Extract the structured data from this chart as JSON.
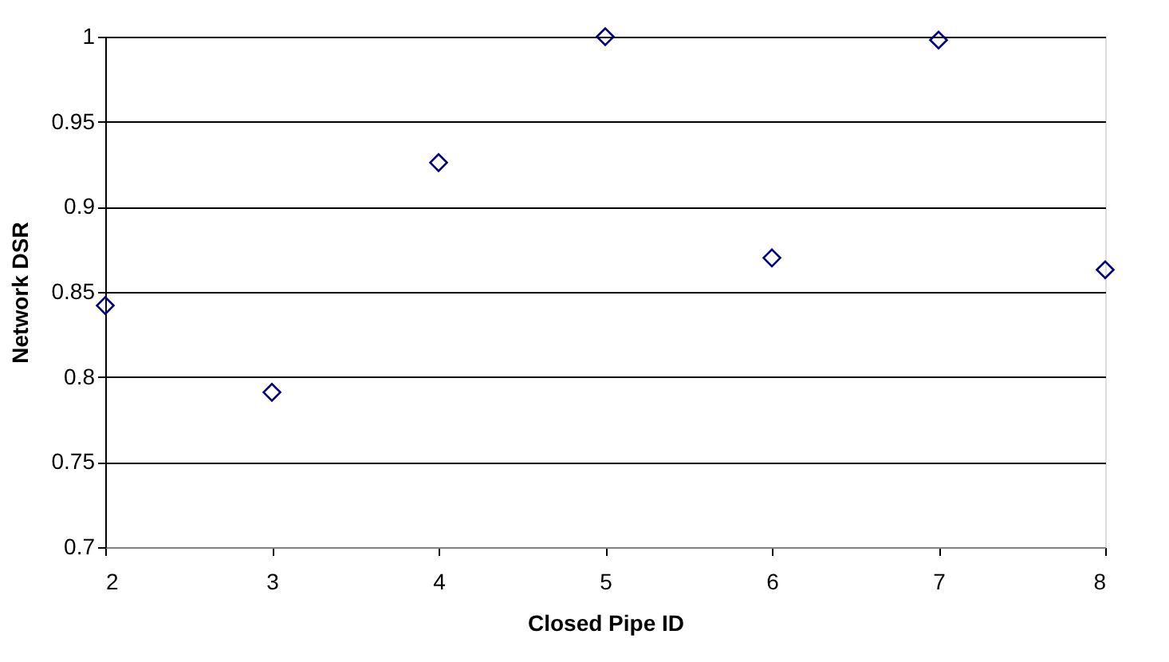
{
  "chart_data": {
    "type": "scatter",
    "xlabel": "Closed Pipe ID",
    "ylabel": "Network DSR",
    "x": [
      2,
      3,
      4,
      5,
      6,
      7,
      8
    ],
    "series": [
      {
        "color": "#000080",
        "values": [
          0.842,
          0.791,
          0.926,
          1.0,
          0.87,
          0.998,
          0.863
        ]
      }
    ],
    "xlim": [
      2,
      8
    ],
    "xticks": [
      2,
      3,
      4,
      5,
      6,
      7,
      8
    ],
    "ylim": [
      0.7,
      1
    ],
    "yticks": [
      0.7,
      0.75,
      0.8,
      0.85,
      0.9,
      0.95,
      1
    ],
    "grid": "y",
    "marker": "diamond",
    "legend": false
  }
}
